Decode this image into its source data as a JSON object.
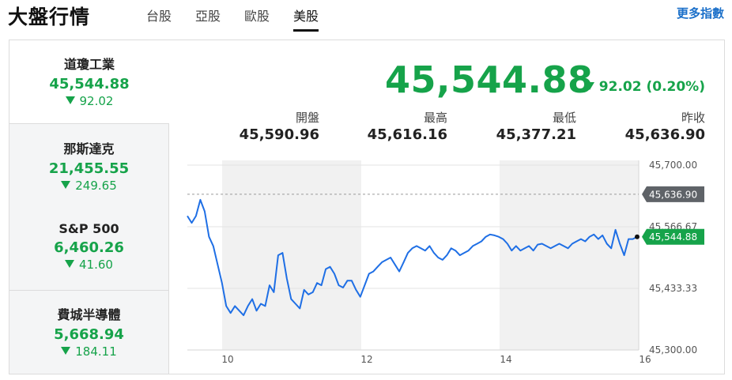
{
  "header": {
    "brand": "大盤行情",
    "tabs": [
      {
        "label": "台股",
        "active": false
      },
      {
        "label": "亞股",
        "active": false
      },
      {
        "label": "歐股",
        "active": false
      },
      {
        "label": "美股",
        "active": true
      }
    ],
    "more_label": "更多指數"
  },
  "indices": [
    {
      "name": "道瓊工業",
      "value": "45,544.88",
      "change": "92.02",
      "direction": "down",
      "selected": true
    },
    {
      "name": "那斯達克",
      "value": "21,455.55",
      "change": "249.65",
      "direction": "down",
      "selected": false
    },
    {
      "name": "S&P 500",
      "value": "6,460.26",
      "change": "41.60",
      "direction": "down",
      "selected": false
    },
    {
      "name": "費城半導體",
      "value": "5,668.94",
      "change": "184.11",
      "direction": "down",
      "selected": false
    }
  ],
  "quote": {
    "price": "45,544.88",
    "change": "92.02 (0.20%)",
    "stats": [
      {
        "label": "開盤",
        "value": "45,590.96"
      },
      {
        "label": "最高",
        "value": "45,616.16"
      },
      {
        "label": "最低",
        "value": "45,377.21"
      },
      {
        "label": "昨收",
        "value": "45,636.90"
      }
    ]
  },
  "colors": {
    "down": "#16a34a",
    "line": "#1f6fe5",
    "prev_close_tag": "#5f6368",
    "shade": "#f1f1f1"
  },
  "chart_data": {
    "type": "line",
    "ylim": [
      45300,
      45700
    ],
    "y_ticks": [
      "45,700.00",
      "45,566.67",
      "45,433.33",
      "45,300.00"
    ],
    "x_ticks": [
      "10",
      "12",
      "14",
      "16"
    ],
    "prev_close": 45636.9,
    "prev_close_label": "45,636.90",
    "last_label": "45,544.88",
    "series": [
      {
        "values": [
          45590,
          45575,
          45590,
          45625,
          45600,
          45545,
          45525,
          45485,
          45445,
          45395,
          45380,
          45395,
          45385,
          45375,
          45395,
          45410,
          45385,
          45400,
          45395,
          45440,
          45425,
          45505,
          45510,
          45455,
          45410,
          45400,
          45390,
          45430,
          45420,
          45425,
          45445,
          45440,
          45475,
          45480,
          45465,
          45440,
          45435,
          45450,
          45450,
          45430,
          45415,
          45440,
          45465,
          45470,
          45480,
          45490,
          45495,
          45500,
          45485,
          45470,
          45490,
          45510,
          45520,
          45525,
          45520,
          45515,
          45525,
          45510,
          45500,
          45495,
          45505,
          45520,
          45515,
          45505,
          45510,
          45515,
          45525,
          45530,
          45535,
          45545,
          45550,
          45548,
          45545,
          45540,
          45530,
          45515,
          45525,
          45515,
          45520,
          45525,
          45515,
          45528,
          45530,
          45525,
          45520,
          45525,
          45530,
          45525,
          45520,
          45530,
          45535,
          45540,
          45535,
          45545,
          45550,
          45540,
          45548,
          45530,
          45520,
          45560,
          45530,
          45505,
          45540,
          45540,
          45544.88
        ]
      }
    ]
  }
}
